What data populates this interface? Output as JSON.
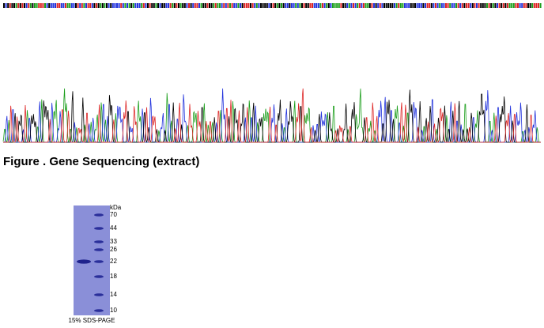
{
  "figure_caption": "Figure . Gene Sequencing (extract)",
  "gel": {
    "unit_label": "kDa",
    "markers": [
      "70",
      "44",
      "33",
      "26",
      "22",
      "18",
      "14",
      "10"
    ],
    "caption": "15% SDS-PAGE"
  }
}
